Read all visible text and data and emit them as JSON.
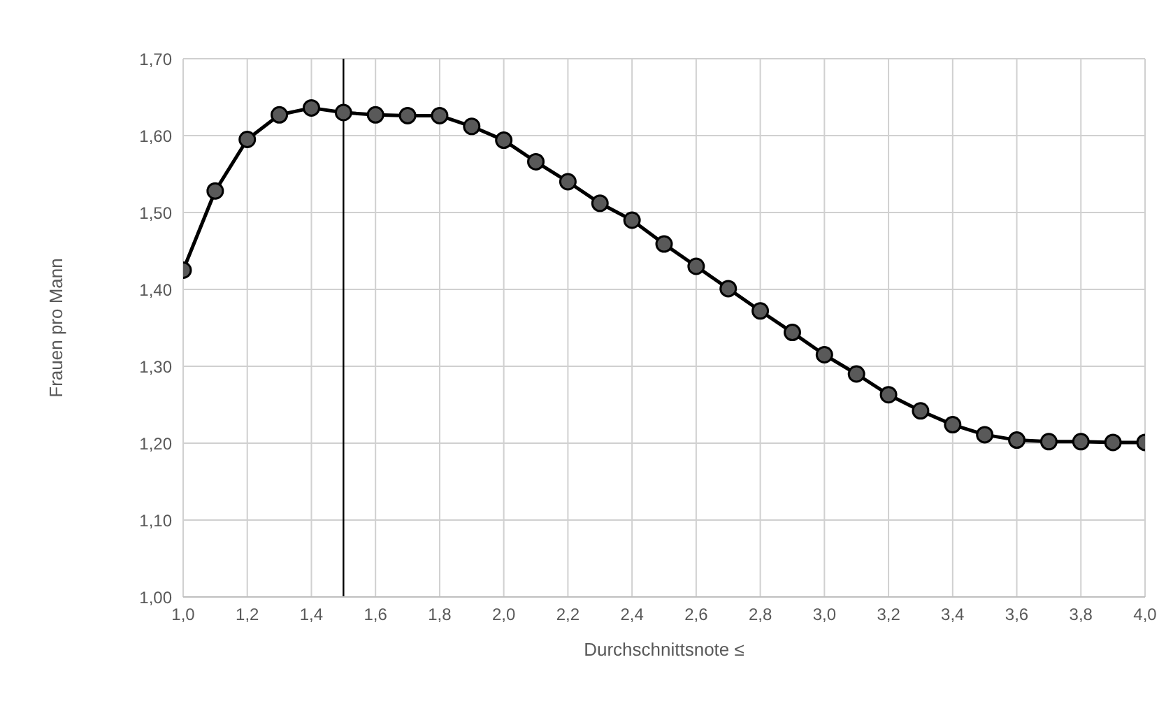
{
  "chart_data": {
    "type": "line",
    "xlabel": "Durchschnittsnote ≤",
    "ylabel": "Frauen pro Mann",
    "x": [
      1.0,
      1.1,
      1.2,
      1.3,
      1.4,
      1.5,
      1.6,
      1.7,
      1.8,
      1.9,
      2.0,
      2.1,
      2.2,
      2.3,
      2.4,
      2.5,
      2.6,
      2.7,
      2.8,
      2.9,
      3.0,
      3.1,
      3.2,
      3.3,
      3.4,
      3.5,
      3.6,
      3.7,
      3.8,
      3.9,
      4.0
    ],
    "series": [
      {
        "color": "#000000",
        "values": [
          1.425,
          1.528,
          1.595,
          1.627,
          1.636,
          1.63,
          1.627,
          1.626,
          1.626,
          1.612,
          1.594,
          1.566,
          1.54,
          1.512,
          1.49,
          1.459,
          1.43,
          1.401,
          1.372,
          1.344,
          1.315,
          1.29,
          1.263,
          1.242,
          1.224,
          1.211,
          1.204,
          1.202,
          1.202,
          1.201,
          1.201
        ]
      }
    ],
    "xlim": [
      1.0,
      4.0
    ],
    "xticks": [
      {
        "value": 1.0,
        "label": "1,0"
      },
      {
        "value": 1.2,
        "label": "1,2"
      },
      {
        "value": 1.4,
        "label": "1,4"
      },
      {
        "value": 1.6,
        "label": "1,6"
      },
      {
        "value": 1.8,
        "label": "1,8"
      },
      {
        "value": 2.0,
        "label": "2,0"
      },
      {
        "value": 2.2,
        "label": "2,2"
      },
      {
        "value": 2.4,
        "label": "2,4"
      },
      {
        "value": 2.6,
        "label": "2,6"
      },
      {
        "value": 2.8,
        "label": "2,8"
      },
      {
        "value": 3.0,
        "label": "3,0"
      },
      {
        "value": 3.2,
        "label": "3,2"
      },
      {
        "value": 3.4,
        "label": "3,4"
      },
      {
        "value": 3.6,
        "label": "3,6"
      },
      {
        "value": 3.8,
        "label": "3,8"
      },
      {
        "value": 4.0,
        "label": "4,0"
      }
    ],
    "ylim": [
      1.0,
      1.7
    ],
    "yticks": [
      {
        "value": 1.0,
        "label": "1,00"
      },
      {
        "value": 1.1,
        "label": "1,10"
      },
      {
        "value": 1.2,
        "label": "1,20"
      },
      {
        "value": 1.3,
        "label": "1,30"
      },
      {
        "value": 1.4,
        "label": "1,40"
      },
      {
        "value": 1.5,
        "label": "1,50"
      },
      {
        "value": 1.6,
        "label": "1,60"
      },
      {
        "value": 1.7,
        "label": "1,70"
      }
    ],
    "ref_lines": [
      {
        "axis": "x",
        "value": 1.5,
        "color": "#000000"
      }
    ],
    "grid": true,
    "marker": "circle",
    "line_style": "solid",
    "legend": false
  }
}
